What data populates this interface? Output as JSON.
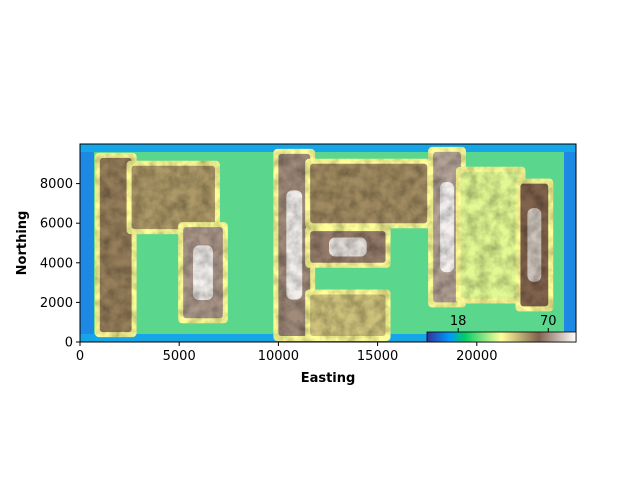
{
  "chart_data": {
    "type": "heatmap",
    "title": "",
    "xlabel": "Easting",
    "ylabel": "Northing",
    "xlim": [
      0,
      25000
    ],
    "ylim": [
      0,
      10000
    ],
    "x_ticks": [
      0,
      5000,
      10000,
      15000,
      20000
    ],
    "y_ticks": [
      0,
      2000,
      4000,
      6000,
      8000
    ],
    "colormap": "terrain",
    "colorbar": {
      "placement": "inset-lower-right",
      "ticks": [
        18,
        70
      ],
      "range": [
        0,
        86
      ]
    },
    "regions": [
      {
        "name": "",
        "value": 66,
        "from_x": 1000,
        "to_x": 2600,
        "from_y": 500,
        "to_y": 9300
      },
      {
        "name": "",
        "value": 62,
        "from_x": 2600,
        "to_x": 6800,
        "from_y": 5700,
        "to_y": 8900
      },
      {
        "name": "",
        "value": 78,
        "from_x": 5200,
        "to_x": 7200,
        "from_y": 1200,
        "to_y": 5800
      },
      {
        "name": "",
        "value": 76,
        "from_x": 10000,
        "to_x": 11600,
        "from_y": 300,
        "to_y": 9500
      },
      {
        "name": "",
        "value": 64,
        "from_x": 11600,
        "to_x": 17500,
        "from_y": 6000,
        "to_y": 9000
      },
      {
        "name": "",
        "value": 74,
        "from_x": 11600,
        "to_x": 15400,
        "from_y": 4000,
        "to_y": 5600
      },
      {
        "name": "",
        "value": 56,
        "from_x": 11600,
        "to_x": 15400,
        "from_y": 300,
        "to_y": 2400
      },
      {
        "name": "",
        "value": 80,
        "from_x": 17800,
        "to_x": 19200,
        "from_y": 2000,
        "to_y": 9600
      },
      {
        "name": "",
        "value": 44,
        "from_x": 19200,
        "to_x": 22200,
        "from_y": 2200,
        "to_y": 8600
      },
      {
        "name": "",
        "value": 70,
        "from_x": 22200,
        "to_x": 23600,
        "from_y": 1800,
        "to_y": 8000
      }
    ]
  }
}
